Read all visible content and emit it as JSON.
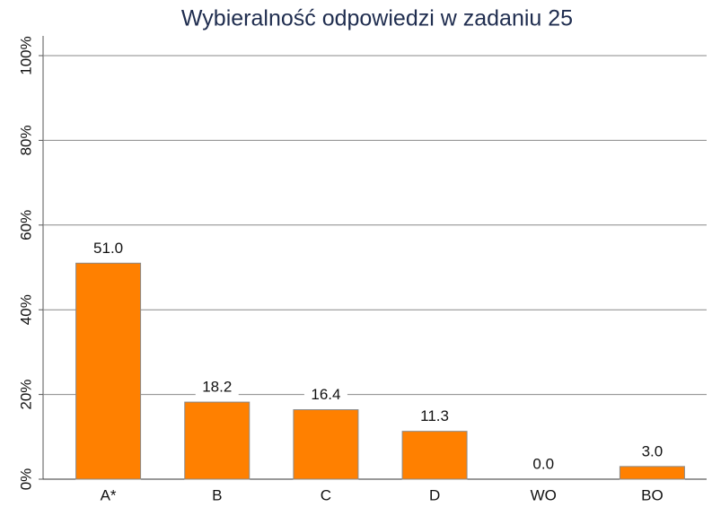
{
  "chart_data": {
    "type": "bar",
    "title": "Wybieralność odpowiedzi w zadaniu 25",
    "categories": [
      "A*",
      "B",
      "C",
      "D",
      "WO",
      "BO"
    ],
    "values": [
      51.0,
      18.2,
      16.4,
      11.3,
      0.0,
      3.0
    ],
    "value_labels": [
      "51.0",
      "18.2",
      "16.4",
      "11.3",
      "0.0",
      "3.0"
    ],
    "color": "#ff8000",
    "ylim": [
      0,
      100
    ],
    "yticks": [
      {
        "value": 0,
        "label": "0%"
      },
      {
        "value": 20,
        "label": "20%"
      },
      {
        "value": 40,
        "label": "40%"
      },
      {
        "value": 60,
        "label": "60%"
      },
      {
        "value": 80,
        "label": "80%"
      },
      {
        "value": 100,
        "label": "100%"
      }
    ],
    "grid": true
  }
}
